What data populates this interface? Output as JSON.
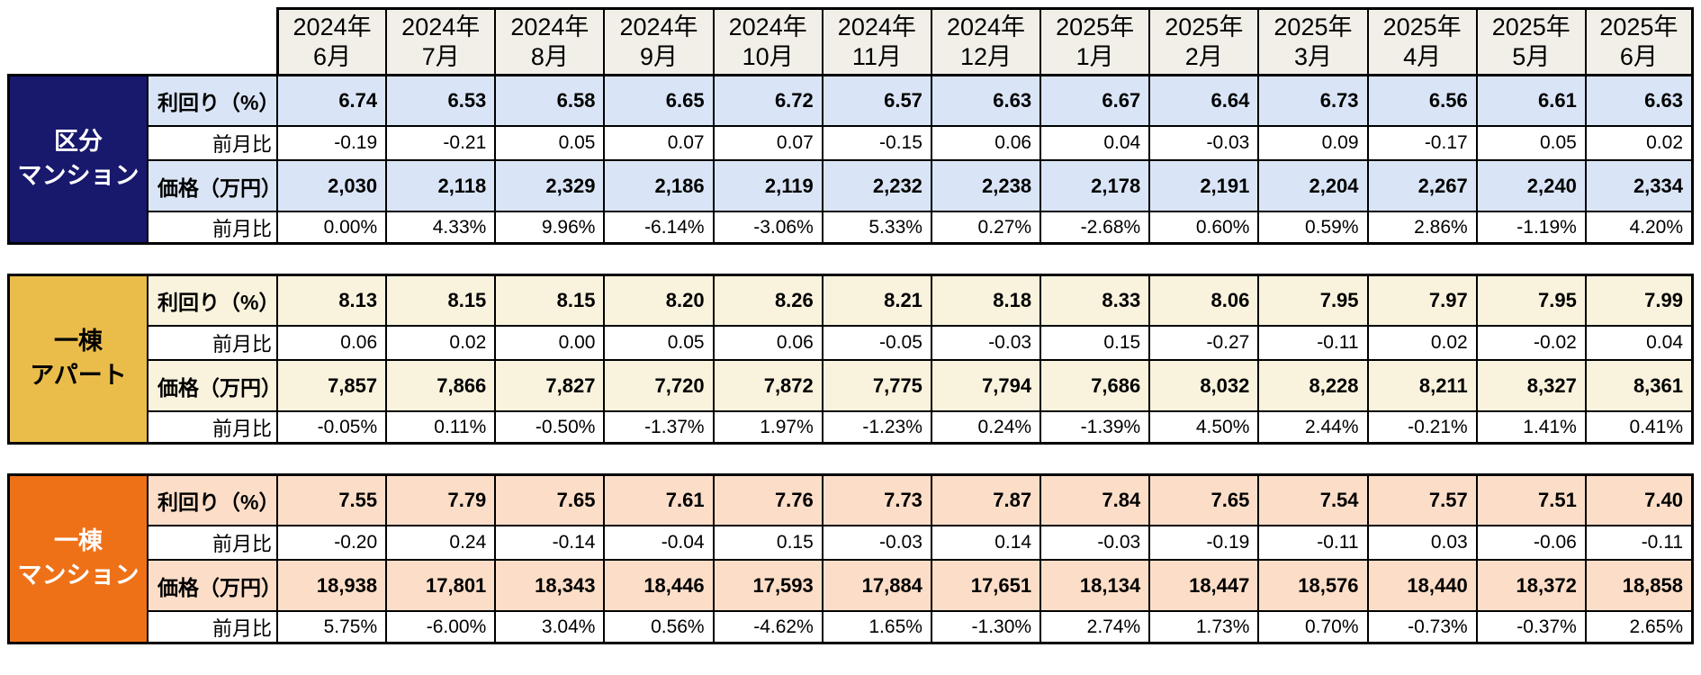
{
  "table": {
    "months": [
      {
        "year": "2024年",
        "month": "6月"
      },
      {
        "year": "2024年",
        "month": "7月"
      },
      {
        "year": "2024年",
        "month": "8月"
      },
      {
        "year": "2024年",
        "month": "9月"
      },
      {
        "year": "2024年",
        "month": "10月"
      },
      {
        "year": "2024年",
        "month": "11月"
      },
      {
        "year": "2024年",
        "month": "12月"
      },
      {
        "year": "2025年",
        "month": "1月"
      },
      {
        "year": "2025年",
        "month": "2月"
      },
      {
        "year": "2025年",
        "month": "3月"
      },
      {
        "year": "2025年",
        "month": "4月"
      },
      {
        "year": "2025年",
        "month": "5月"
      },
      {
        "year": "2025年",
        "month": "6月"
      }
    ],
    "sections": [
      {
        "id": "kubun-mansion",
        "name_lines": [
          "区分",
          "マンション"
        ],
        "header_bg": "#18186D",
        "header_text": "#FFFFFF",
        "row_bg": "#D9E5F6",
        "rows": [
          {
            "label": "利回り（%）",
            "bold": true,
            "values": [
              "6.74",
              "6.53",
              "6.58",
              "6.65",
              "6.72",
              "6.57",
              "6.63",
              "6.67",
              "6.64",
              "6.73",
              "6.56",
              "6.61",
              "6.63"
            ]
          },
          {
            "label": "前月比",
            "bold": false,
            "values": [
              "-0.19",
              "-0.21",
              "0.05",
              "0.07",
              "0.07",
              "-0.15",
              "0.06",
              "0.04",
              "-0.03",
              "0.09",
              "-0.17",
              "0.05",
              "0.02"
            ]
          },
          {
            "label": "価格（万円）",
            "bold": true,
            "values": [
              "2,030",
              "2,118",
              "2,329",
              "2,186",
              "2,119",
              "2,232",
              "2,238",
              "2,178",
              "2,191",
              "2,204",
              "2,267",
              "2,240",
              "2,334"
            ]
          },
          {
            "label": "前月比",
            "bold": false,
            "values": [
              "0.00%",
              "4.33%",
              "9.96%",
              "-6.14%",
              "-3.06%",
              "5.33%",
              "0.27%",
              "-2.68%",
              "0.60%",
              "0.59%",
              "2.86%",
              "-1.19%",
              "4.20%"
            ]
          }
        ]
      },
      {
        "id": "itto-apart",
        "name_lines": [
          "一棟",
          "アパート"
        ],
        "header_bg": "#EABD4B",
        "header_text": "#000000",
        "row_bg": "#F9F3DD",
        "rows": [
          {
            "label": "利回り（%）",
            "bold": true,
            "values": [
              "8.13",
              "8.15",
              "8.15",
              "8.20",
              "8.26",
              "8.21",
              "8.18",
              "8.33",
              "8.06",
              "7.95",
              "7.97",
              "7.95",
              "7.99"
            ]
          },
          {
            "label": "前月比",
            "bold": false,
            "values": [
              "0.06",
              "0.02",
              "0.00",
              "0.05",
              "0.06",
              "-0.05",
              "-0.03",
              "0.15",
              "-0.27",
              "-0.11",
              "0.02",
              "-0.02",
              "0.04"
            ]
          },
          {
            "label": "価格（万円）",
            "bold": true,
            "values": [
              "7,857",
              "7,866",
              "7,827",
              "7,720",
              "7,872",
              "7,775",
              "7,794",
              "7,686",
              "8,032",
              "8,228",
              "8,211",
              "8,327",
              "8,361"
            ]
          },
          {
            "label": "前月比",
            "bold": false,
            "values": [
              "-0.05%",
              "0.11%",
              "-0.50%",
              "-1.37%",
              "1.97%",
              "-1.23%",
              "0.24%",
              "-1.39%",
              "4.50%",
              "2.44%",
              "-0.21%",
              "1.41%",
              "0.41%"
            ]
          }
        ]
      },
      {
        "id": "itto-mansion",
        "name_lines": [
          "一棟",
          "マンション"
        ],
        "header_bg": "#EE7118",
        "header_text": "#FFFFFF",
        "row_bg": "#FCDEC8",
        "rows": [
          {
            "label": "利回り（%）",
            "bold": true,
            "values": [
              "7.55",
              "7.79",
              "7.65",
              "7.61",
              "7.76",
              "7.73",
              "7.87",
              "7.84",
              "7.65",
              "7.54",
              "7.57",
              "7.51",
              "7.40"
            ]
          },
          {
            "label": "前月比",
            "bold": false,
            "values": [
              "-0.20",
              "0.24",
              "-0.14",
              "-0.04",
              "0.15",
              "-0.03",
              "0.14",
              "-0.03",
              "-0.19",
              "-0.11",
              "0.03",
              "-0.06",
              "-0.11"
            ]
          },
          {
            "label": "価格（万円）",
            "bold": true,
            "values": [
              "18,938",
              "17,801",
              "18,343",
              "18,446",
              "17,593",
              "17,884",
              "17,651",
              "18,134",
              "18,447",
              "18,576",
              "18,440",
              "18,372",
              "18,858"
            ]
          },
          {
            "label": "前月比",
            "bold": false,
            "values": [
              "5.75%",
              "-6.00%",
              "3.04%",
              "0.56%",
              "-4.62%",
              "1.65%",
              "-1.30%",
              "2.74%",
              "1.73%",
              "0.70%",
              "-0.73%",
              "-0.37%",
              "2.65%"
            ]
          }
        ]
      }
    ]
  },
  "chart_data": {
    "type": "table",
    "categories": [
      "2024年6月",
      "2024年7月",
      "2024年8月",
      "2024年9月",
      "2024年10月",
      "2024年11月",
      "2024年12月",
      "2025年1月",
      "2025年2月",
      "2025年3月",
      "2025年4月",
      "2025年5月",
      "2025年6月"
    ],
    "series": [
      {
        "name": "区分マンション 利回り（%）",
        "values": [
          6.74,
          6.53,
          6.58,
          6.65,
          6.72,
          6.57,
          6.63,
          6.67,
          6.64,
          6.73,
          6.56,
          6.61,
          6.63
        ]
      },
      {
        "name": "区分マンション 利回り前月比",
        "values": [
          -0.19,
          -0.21,
          0.05,
          0.07,
          0.07,
          -0.15,
          0.06,
          0.04,
          -0.03,
          0.09,
          -0.17,
          0.05,
          0.02
        ]
      },
      {
        "name": "区分マンション 価格（万円）",
        "values": [
          2030,
          2118,
          2329,
          2186,
          2119,
          2232,
          2238,
          2178,
          2191,
          2204,
          2267,
          2240,
          2334
        ]
      },
      {
        "name": "区分マンション 価格前月比(%)",
        "values": [
          0.0,
          4.33,
          9.96,
          -6.14,
          -3.06,
          5.33,
          0.27,
          -2.68,
          0.6,
          0.59,
          2.86,
          -1.19,
          4.2
        ]
      },
      {
        "name": "一棟アパート 利回り（%）",
        "values": [
          8.13,
          8.15,
          8.15,
          8.2,
          8.26,
          8.21,
          8.18,
          8.33,
          8.06,
          7.95,
          7.97,
          7.95,
          7.99
        ]
      },
      {
        "name": "一棟アパート 利回り前月比",
        "values": [
          0.06,
          0.02,
          0.0,
          0.05,
          0.06,
          -0.05,
          -0.03,
          0.15,
          -0.27,
          -0.11,
          0.02,
          -0.02,
          0.04
        ]
      },
      {
        "name": "一棟アパート 価格（万円）",
        "values": [
          7857,
          7866,
          7827,
          7720,
          7872,
          7775,
          7794,
          7686,
          8032,
          8228,
          8211,
          8327,
          8361
        ]
      },
      {
        "name": "一棟アパート 価格前月比(%)",
        "values": [
          -0.05,
          0.11,
          -0.5,
          -1.37,
          1.97,
          -1.23,
          0.24,
          -1.39,
          4.5,
          2.44,
          -0.21,
          1.41,
          0.41
        ]
      },
      {
        "name": "一棟マンション 利回り（%）",
        "values": [
          7.55,
          7.79,
          7.65,
          7.61,
          7.76,
          7.73,
          7.87,
          7.84,
          7.65,
          7.54,
          7.57,
          7.51,
          7.4
        ]
      },
      {
        "name": "一棟マンション 利回り前月比",
        "values": [
          -0.2,
          0.24,
          -0.14,
          -0.04,
          0.15,
          -0.03,
          0.14,
          -0.03,
          -0.19,
          -0.11,
          0.03,
          -0.06,
          -0.11
        ]
      },
      {
        "name": "一棟マンション 価格（万円）",
        "values": [
          18938,
          17801,
          18343,
          18446,
          17593,
          17884,
          17651,
          18134,
          18447,
          18576,
          18440,
          18372,
          18858
        ]
      },
      {
        "name": "一棟マンション 価格前月比(%)",
        "values": [
          5.75,
          -6.0,
          3.04,
          0.56,
          -4.62,
          1.65,
          -1.3,
          2.74,
          1.73,
          0.7,
          -0.73,
          -0.37,
          2.65
        ]
      }
    ],
    "layout": {
      "grid": "on",
      "row_groups": [
        "区分マンション",
        "一棟アパート",
        "一棟マンション"
      ],
      "row_labels": [
        "利回り（%）",
        "前月比",
        "価格（万円）",
        "前月比"
      ]
    }
  }
}
